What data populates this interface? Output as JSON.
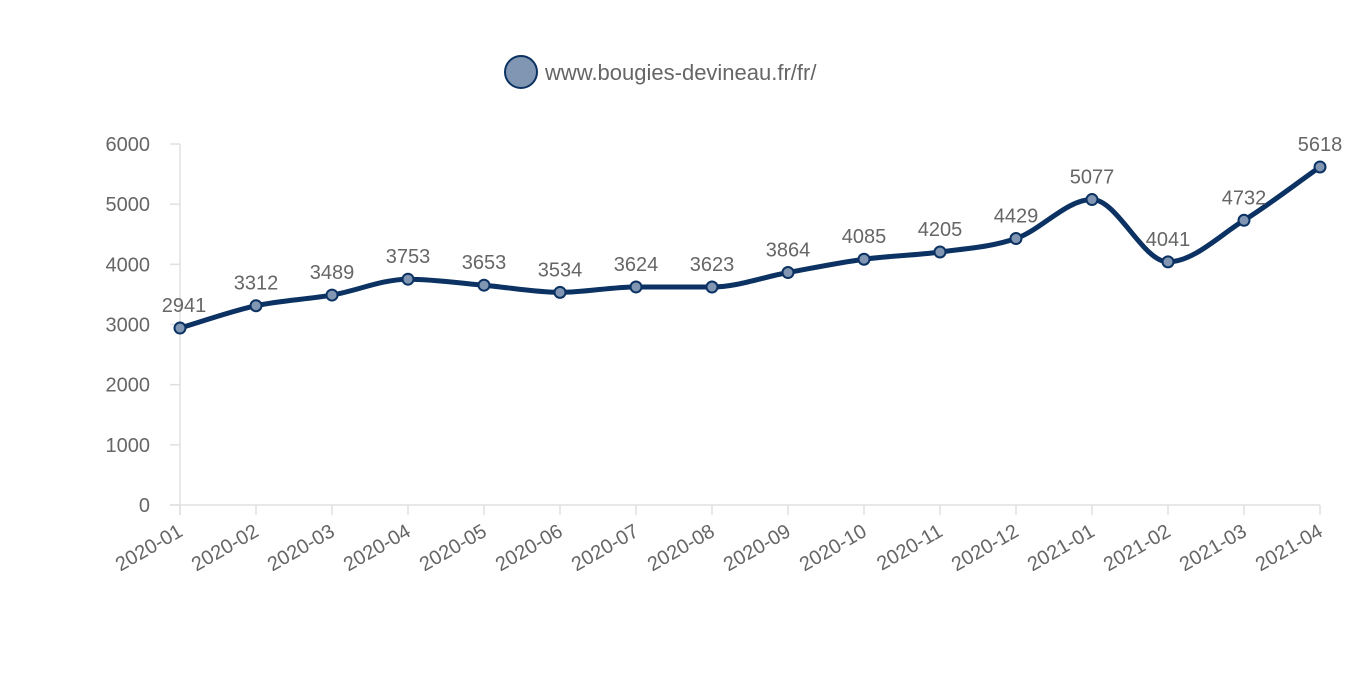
{
  "chart_data": {
    "type": "line",
    "title": "",
    "xlabel": "",
    "ylabel": "",
    "categories": [
      "2020-01",
      "2020-02",
      "2020-03",
      "2020-04",
      "2020-05",
      "2020-06",
      "2020-07",
      "2020-08",
      "2020-09",
      "2020-10",
      "2020-11",
      "2020-12",
      "2021-01",
      "2021-02",
      "2021-03",
      "2021-04"
    ],
    "series": [
      {
        "name": "www.bougies-devineau.fr/fr/",
        "values": [
          2941,
          3312,
          3489,
          3753,
          3653,
          3534,
          3624,
          3623,
          3864,
          4085,
          4205,
          4429,
          5077,
          4041,
          4732,
          5618
        ],
        "line_color": "#0b3262",
        "point_fill": "#8196b2"
      }
    ],
    "ylim": [
      0,
      6000
    ],
    "yticks": [
      "0",
      "1000",
      "2000",
      "3000",
      "4000",
      "5000",
      "6000"
    ],
    "legend_position": "top-center",
    "grid": false,
    "smooth": true,
    "data_labels": true
  }
}
